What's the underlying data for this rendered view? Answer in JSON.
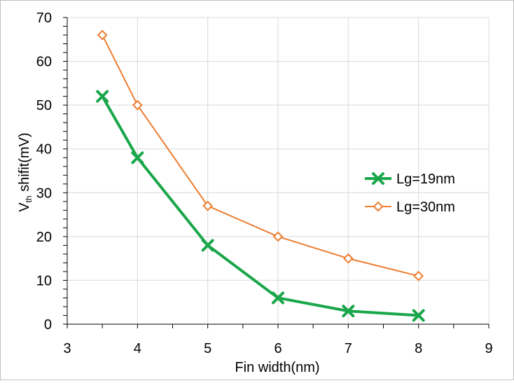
{
  "chart_data": {
    "type": "line",
    "title": "",
    "xlabel": "Fin width(nm)",
    "ylabel_main": "V",
    "ylabel_sub": "th",
    "ylabel_rest": " shifit(mV)",
    "xlim": [
      3,
      9
    ],
    "ylim": [
      0,
      70
    ],
    "xticks": [
      "3",
      "4",
      "5",
      "6",
      "7",
      "8",
      "9"
    ],
    "yticks": [
      "0",
      "10",
      "20",
      "30",
      "40",
      "50",
      "60",
      "70"
    ],
    "grid": true,
    "legend_position": "right",
    "series": [
      {
        "name": "Lg=19nm",
        "color": "#1aa64a",
        "marker": "x",
        "x": [
          3.5,
          4,
          5,
          6,
          7,
          8
        ],
        "y": [
          52,
          38,
          18,
          6,
          3,
          2
        ]
      },
      {
        "name": "Lg=30nm",
        "color": "#ed7d31",
        "marker": "diamond",
        "x": [
          3.5,
          4,
          5,
          6,
          7,
          8
        ],
        "y": [
          66,
          50,
          27,
          20,
          15,
          11
        ]
      }
    ]
  }
}
